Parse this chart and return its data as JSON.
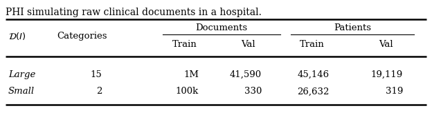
{
  "col0_header": "$\\mathcal{D}(I)$",
  "col1_header": "Categories",
  "group1_header": "Documents",
  "group2_header": "Patients",
  "sub_headers": [
    "Train",
    "Val",
    "Train",
    "Val"
  ],
  "rows": [
    [
      "Large",
      "15",
      "1M",
      "41,590",
      "45,146",
      "19,119"
    ],
    [
      "Small",
      "2",
      "100k",
      "330",
      "26,632",
      "319"
    ]
  ],
  "background_color": "#ffffff",
  "text_color": "#000000",
  "font_size": 9.5
}
